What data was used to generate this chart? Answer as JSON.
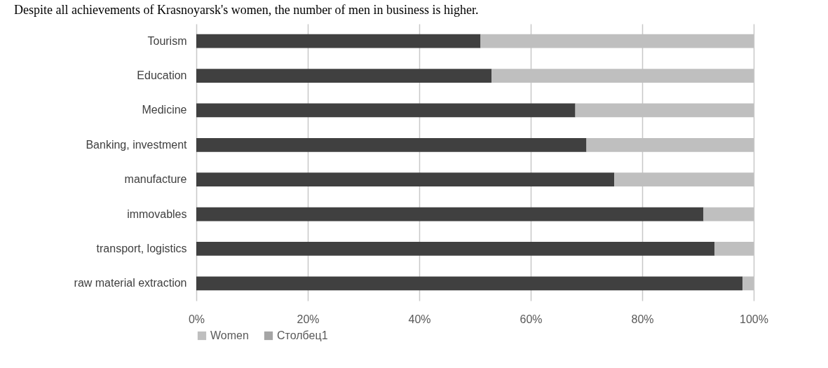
{
  "chart_data": {
    "type": "bar",
    "orientation": "horizontal",
    "stacked": true,
    "title": "Despite all achievements of Krasnoyarsk's women, the number of men in business is higher.",
    "categories": [
      "Tourism",
      "Education",
      "Medicine",
      "Banking, investment",
      "manufacture",
      "immovables",
      "transport, logistics",
      "raw material extraction"
    ],
    "series": [
      {
        "color": "#404040",
        "values": [
          51,
          53,
          68,
          70,
          75,
          91,
          93,
          98
        ]
      },
      {
        "name": "Women",
        "color": "#bfbfbf",
        "values": [
          49,
          47,
          32,
          30,
          25,
          9,
          7,
          2
        ]
      },
      {
        "name": "Столбец1",
        "color": "#a5a5a5",
        "values": [
          null,
          null,
          null,
          null,
          null,
          null,
          null,
          null
        ]
      }
    ],
    "xlim": [
      0,
      100
    ],
    "xticks": [
      {
        "value": 0,
        "label": "0%"
      },
      {
        "value": 20,
        "label": "20%"
      },
      {
        "value": 40,
        "label": "40%"
      },
      {
        "value": 60,
        "label": "60%"
      },
      {
        "value": 80,
        "label": "80%"
      },
      {
        "value": 100,
        "label": "100%"
      }
    ],
    "grid": "x",
    "legend": "bottom left"
  }
}
